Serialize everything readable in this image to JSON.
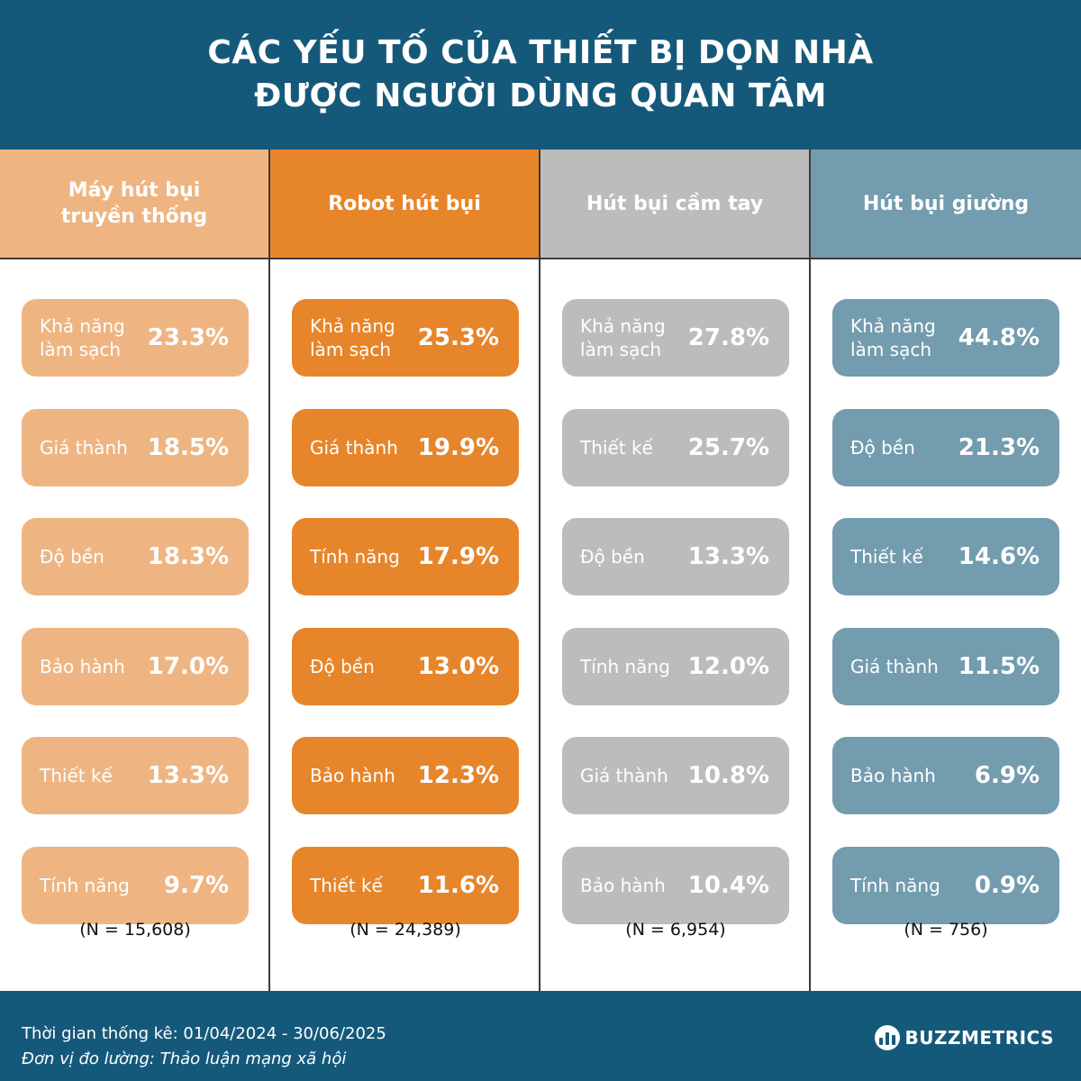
{
  "header": {
    "title_line1": "CÁC YẾU TỐ CỦA THIẾT BỊ DỌN NHÀ",
    "title_line2": "ĐƯỢC NGƯỜI DÙNG QUAN TÂM"
  },
  "colors": {
    "header_bg": "#15597a",
    "traditional": "#eeb582",
    "robot": "#e7852a",
    "handheld": "#bcbcbc",
    "bed": "#739cae"
  },
  "chart_data": {
    "type": "table",
    "unit": "%",
    "series": [
      {
        "name": "Máy hút bụi truyền thống",
        "color": "#eeb582",
        "n_label": "(N = 15,608)",
        "items": [
          {
            "label": "Khả năng làm sạch",
            "value": 23.3,
            "display": "23.3%"
          },
          {
            "label": "Giá thành",
            "value": 18.5,
            "display": "18.5%"
          },
          {
            "label": "Độ bền",
            "value": 18.3,
            "display": "18.3%"
          },
          {
            "label": "Bảo hành",
            "value": 17.0,
            "display": "17.0%"
          },
          {
            "label": "Thiết kế",
            "value": 13.3,
            "display": "13.3%"
          },
          {
            "label": "Tính năng",
            "value": 9.7,
            "display": "9.7%"
          }
        ]
      },
      {
        "name": "Robot hút bụi",
        "color": "#e7852a",
        "n_label": "(N = 24,389)",
        "items": [
          {
            "label": "Khả năng làm sạch",
            "value": 25.3,
            "display": "25.3%"
          },
          {
            "label": "Giá thành",
            "value": 19.9,
            "display": "19.9%"
          },
          {
            "label": "Tính năng",
            "value": 17.9,
            "display": "17.9%"
          },
          {
            "label": "Độ bền",
            "value": 13.0,
            "display": "13.0%"
          },
          {
            "label": "Bảo hành",
            "value": 12.3,
            "display": "12.3%"
          },
          {
            "label": "Thiết kế",
            "value": 11.6,
            "display": "11.6%"
          }
        ]
      },
      {
        "name": "Hút bụi cầm tay",
        "color": "#bcbcbc",
        "n_label": "(N = 6,954)",
        "items": [
          {
            "label": "Khả năng làm sạch",
            "value": 27.8,
            "display": "27.8%"
          },
          {
            "label": "Thiết kế",
            "value": 25.7,
            "display": "25.7%"
          },
          {
            "label": "Độ bền",
            "value": 13.3,
            "display": "13.3%"
          },
          {
            "label": "Tính năng",
            "value": 12.0,
            "display": "12.0%"
          },
          {
            "label": "Giá thành",
            "value": 10.8,
            "display": "10.8%"
          },
          {
            "label": "Bảo hành",
            "value": 10.4,
            "display": "10.4%"
          }
        ]
      },
      {
        "name": "Hút bụi giường",
        "color": "#739cae",
        "n_label": "(N = 756)",
        "items": [
          {
            "label": "Khả năng làm sạch",
            "value": 44.8,
            "display": "44.8%"
          },
          {
            "label": "Độ bền",
            "value": 21.3,
            "display": "21.3%"
          },
          {
            "label": "Thiết kế",
            "value": 14.6,
            "display": "14.6%"
          },
          {
            "label": "Giá thành",
            "value": 11.5,
            "display": "11.5%"
          },
          {
            "label": "Bảo hành",
            "value": 6.9,
            "display": "6.9%"
          },
          {
            "label": "Tính năng",
            "value": 0.9,
            "display": "0.9%"
          }
        ]
      }
    ]
  },
  "footer": {
    "period": "Thời gian thống kê: 01/04/2024 - 30/06/2025",
    "unit": "Đơn vị đo lường: Thảo luận mạng xã hội",
    "brand": "BUZZMETRICS",
    "brand_icon": "bar-chart-icon"
  }
}
